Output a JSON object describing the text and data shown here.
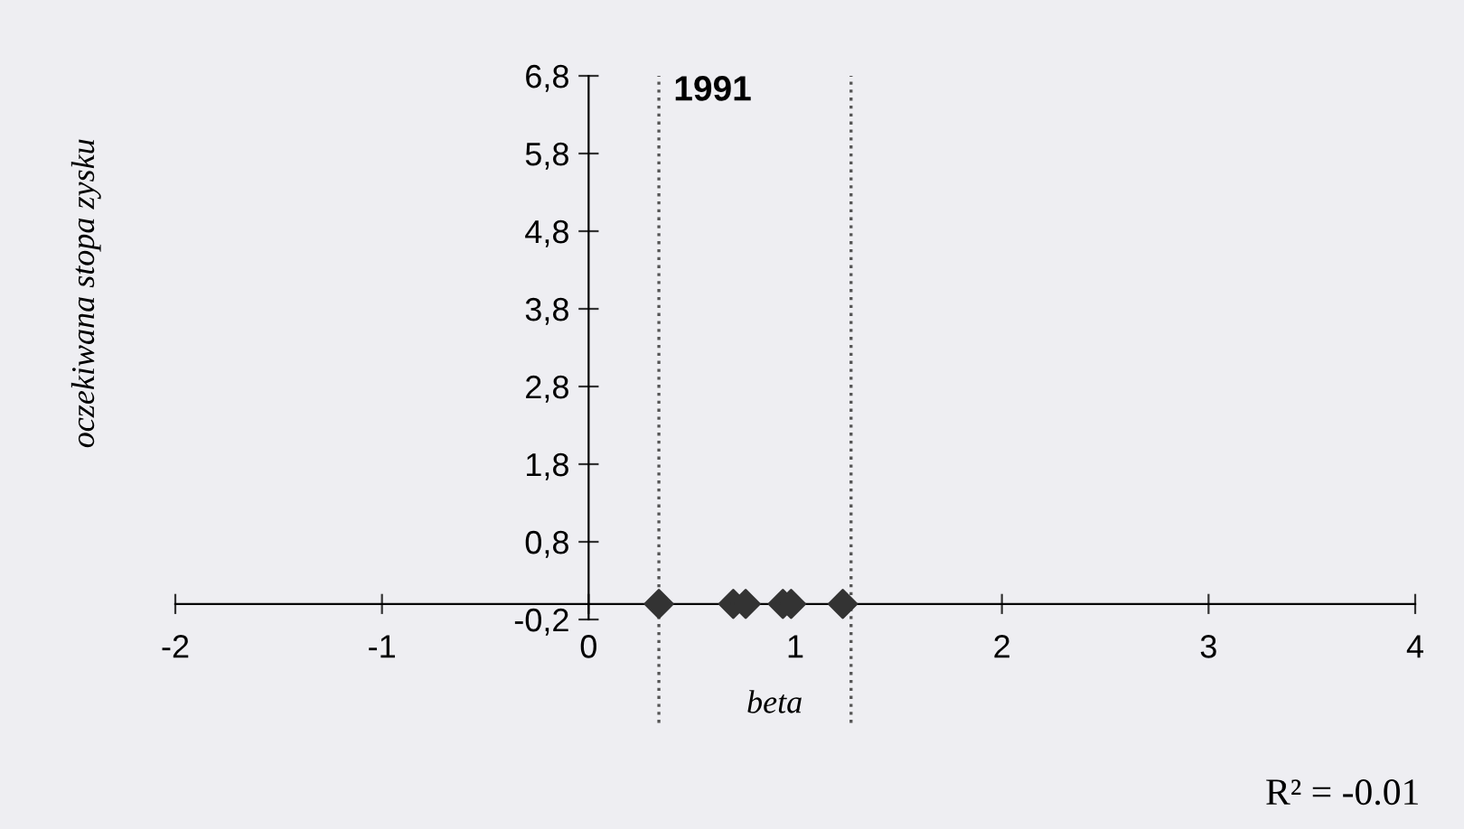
{
  "chart_data": {
    "type": "scatter",
    "title": "1991",
    "xlabel": "beta",
    "ylabel": "oczekiwana stopa zysku",
    "x": [
      0.34,
      0.7,
      0.76,
      0.94,
      0.98,
      1.23
    ],
    "series": [
      {
        "color": "#333333",
        "values": [
          0,
          0,
          0,
          0,
          0,
          0
        ]
      }
    ],
    "marker": "diamond",
    "xlim": [
      -2,
      4
    ],
    "xticks": [
      -2,
      -1,
      0,
      1,
      2,
      3,
      4
    ],
    "ylim": [
      -0.2,
      6.8
    ],
    "yticks": [
      {
        "value": -0.2,
        "label": "-0,2"
      },
      {
        "value": 0.8,
        "label": "0,8"
      },
      {
        "value": 1.8,
        "label": "1,8"
      },
      {
        "value": 2.8,
        "label": "2,8"
      },
      {
        "value": 3.8,
        "label": "3,8"
      },
      {
        "value": 4.8,
        "label": "4,8"
      },
      {
        "value": 5.8,
        "label": "5,8"
      },
      {
        "value": 6.8,
        "label": "6,8"
      }
    ],
    "ref_lines": [
      {
        "axis": "x",
        "value": 0.34,
        "line_style": "dotted",
        "color": "#555555"
      },
      {
        "axis": "x",
        "value": 1.27,
        "line_style": "dotted",
        "color": "#555555"
      }
    ],
    "annotations": [
      "R² = -0.01"
    ],
    "grid": false,
    "legend": false
  }
}
